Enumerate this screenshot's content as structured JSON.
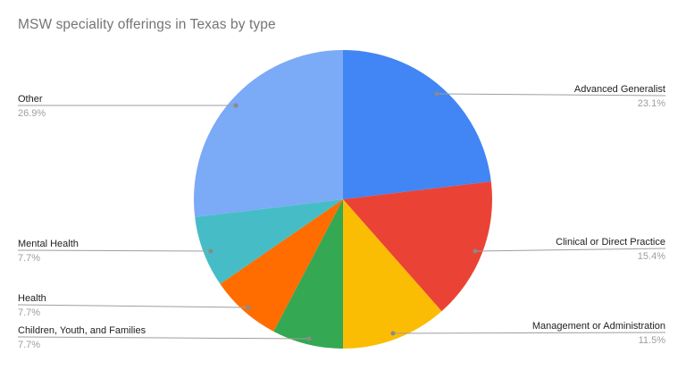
{
  "chart_data": {
    "type": "pie",
    "title": "MSW speciality offerings in Texas by type",
    "direction": "clockwise",
    "start_angle_deg": 0,
    "legend": "callout-labels",
    "slices": [
      {
        "label": "Advanced Generalist",
        "value": 23.1,
        "pct_label": "23.1%",
        "color": "#4285F4"
      },
      {
        "label": "Clinical or Direct Practice",
        "value": 15.4,
        "pct_label": "15.4%",
        "color": "#EA4335"
      },
      {
        "label": "Management or Administration",
        "value": 11.5,
        "pct_label": "11.5%",
        "color": "#FBBC04"
      },
      {
        "label": "Children, Youth, and Families",
        "value": 7.7,
        "pct_label": "7.7%",
        "color": "#34A853"
      },
      {
        "label": "Health",
        "value": 7.7,
        "pct_label": "7.7%",
        "color": "#FF6D01"
      },
      {
        "label": "Mental Health",
        "value": 7.7,
        "pct_label": "7.7%",
        "color": "#46BDC6"
      },
      {
        "label": "Other",
        "value": 26.9,
        "pct_label": "26.9%",
        "color": "#7BAAF7"
      }
    ],
    "callout_line_color": "#9e9e9e",
    "callout_dot_color": "#8a8a8a"
  }
}
